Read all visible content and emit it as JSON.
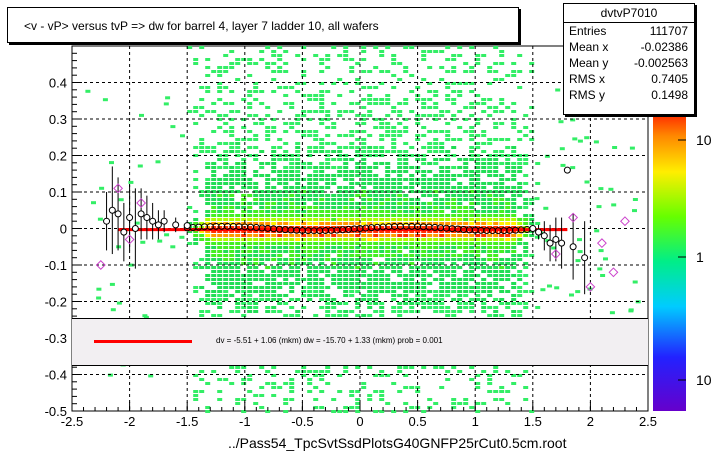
{
  "title": "<v - vP>       versus  tvP =>  dw for barrel 4, layer 7 ladder 10, all wafers",
  "footer": "../Pass54_TpcSvtSsdPlotsG40GNFP25rCut0.5cm.root",
  "stats": {
    "name": "dvtvP7010",
    "rows": [
      {
        "key": "Entries",
        "value": "111707"
      },
      {
        "key": "Mean x",
        "value": "-0.02386"
      },
      {
        "key": "Mean y",
        "value": "-0.002563"
      },
      {
        "key": "RMS x",
        "value": "0.7405"
      },
      {
        "key": "RMS y",
        "value": "0.1498"
      }
    ]
  },
  "legend": {
    "text": "dv =   -5.51 +   1.06 (mkm) dw =  -15.70 +   1.33 (mkm) prob = 0.001",
    "line_color": "#ff0000"
  },
  "colors": {
    "fit": "#ff0000",
    "marker": "#000000",
    "marker_alt": "#cc44cc"
  },
  "chart_data": {
    "type": "heatmap",
    "xlim": [
      -2.5,
      2.5
    ],
    "ylim": [
      -0.5,
      0.5
    ],
    "x_ticks": [
      -2.5,
      -2,
      -1.5,
      -1,
      -0.5,
      0,
      0.5,
      1,
      1.5,
      2,
      2.5
    ],
    "x_tick_labels": [
      "-2.5",
      "-2",
      "-1.5",
      "-1",
      "-0.5",
      "0",
      "0.5",
      "1",
      "1.5",
      "2",
      "2.5"
    ],
    "y_ticks": [
      -0.5,
      -0.4,
      -0.3,
      -0.2,
      -0.1,
      0,
      0.1,
      0.2,
      0.3,
      0.4
    ],
    "y_tick_labels": [
      "-0.5",
      "-0.4",
      "-0.3",
      "-0.2",
      "-0.1",
      "0",
      "0.1",
      "0.2",
      "0.3",
      "0.4"
    ],
    "z_scale": "log",
    "z_tick_labels": [
      "10",
      "1",
      "10"
    ],
    "grid": true,
    "fit_line": {
      "x": [
        -2.1,
        1.8
      ],
      "y": [
        -0.003,
        -0.003
      ]
    },
    "profile_points": [
      {
        "x": -2.2,
        "y": 0.02,
        "err": 0.08
      },
      {
        "x": -2.15,
        "y": 0.05,
        "err": 0.12
      },
      {
        "x": -2.1,
        "y": 0.04,
        "err": 0.1
      },
      {
        "x": -2.05,
        "y": -0.01,
        "err": 0.08
      },
      {
        "x": -2.0,
        "y": 0.03,
        "err": 0.09
      },
      {
        "x": -1.95,
        "y": 0.0,
        "err": 0.11
      },
      {
        "x": -1.9,
        "y": 0.04,
        "err": 0.07
      },
      {
        "x": -1.85,
        "y": 0.03,
        "err": 0.06
      },
      {
        "x": -1.8,
        "y": 0.02,
        "err": 0.05
      },
      {
        "x": -1.75,
        "y": 0.01,
        "err": 0.04
      },
      {
        "x": -1.7,
        "y": 0.02,
        "err": 0.03
      },
      {
        "x": -1.6,
        "y": 0.01,
        "err": 0.02
      },
      {
        "x": -1.5,
        "y": 0.008,
        "err": 0.01
      },
      {
        "x": 1.5,
        "y": 0.0,
        "err": 0.01
      },
      {
        "x": 1.55,
        "y": -0.01,
        "err": 0.02
      },
      {
        "x": 1.6,
        "y": -0.02,
        "err": 0.04
      },
      {
        "x": 1.65,
        "y": -0.04,
        "err": 0.05
      },
      {
        "x": 1.7,
        "y": -0.03,
        "err": 0.06
      },
      {
        "x": 1.75,
        "y": -0.04,
        "err": 0.07
      },
      {
        "x": 1.8,
        "y": 0.16,
        "err": 0.0
      },
      {
        "x": 1.85,
        "y": -0.05,
        "err": 0.09
      },
      {
        "x": 1.95,
        "y": -0.08,
        "err": 0.1
      }
    ],
    "outlier_points": [
      {
        "x": -2.25,
        "y": -0.1
      },
      {
        "x": -2.1,
        "y": 0.11
      },
      {
        "x": -2.0,
        "y": -0.03
      },
      {
        "x": -1.9,
        "y": 0.07
      },
      {
        "x": 2.0,
        "y": -0.16
      },
      {
        "x": 2.1,
        "y": -0.04
      },
      {
        "x": 2.2,
        "y": -0.12
      },
      {
        "x": 2.3,
        "y": 0.02
      },
      {
        "x": 2.05,
        "y": 0.37
      },
      {
        "x": 1.7,
        "y": -0.07
      },
      {
        "x": 1.85,
        "y": 0.03
      }
    ]
  }
}
